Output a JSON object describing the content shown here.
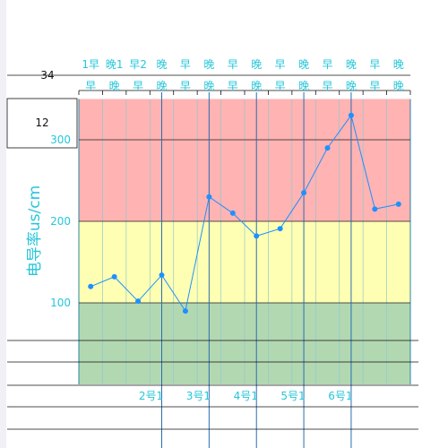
{
  "chart_data": {
    "type": "line",
    "x_top_row1": [
      "1早",
      "晚1",
      "早2",
      "晚",
      "早",
      "晚",
      "早",
      "晚",
      "早",
      "晚",
      "早",
      "晚",
      "早",
      "晚"
    ],
    "x_top_row2": [
      "早",
      "晚",
      "早",
      "晚",
      "早",
      "晚",
      "早",
      "晚",
      "早",
      "晚",
      "早",
      "晚",
      "早",
      "晚"
    ],
    "x_bottom_labels": [
      "2号1",
      "3号1",
      "4号1",
      "5号1",
      "6号1"
    ],
    "ylabel": "电导率us/cm",
    "yticks": [
      100,
      200,
      300
    ],
    "ylim": [
      0,
      350
    ],
    "values": [
      120,
      132,
      102,
      134,
      90,
      230,
      210,
      182,
      191,
      235,
      290,
      330,
      215,
      221
    ],
    "bands": [
      {
        "from": 0,
        "to": 100,
        "color": "#b2d8b2"
      },
      {
        "from": 100,
        "to": 200,
        "color": "#ffffb3"
      },
      {
        "from": 200,
        "to": 350,
        "color": "#ffb3b3"
      }
    ],
    "side_values": [
      "34",
      "12"
    ],
    "line_color": "#1e90ff",
    "grid": true
  }
}
